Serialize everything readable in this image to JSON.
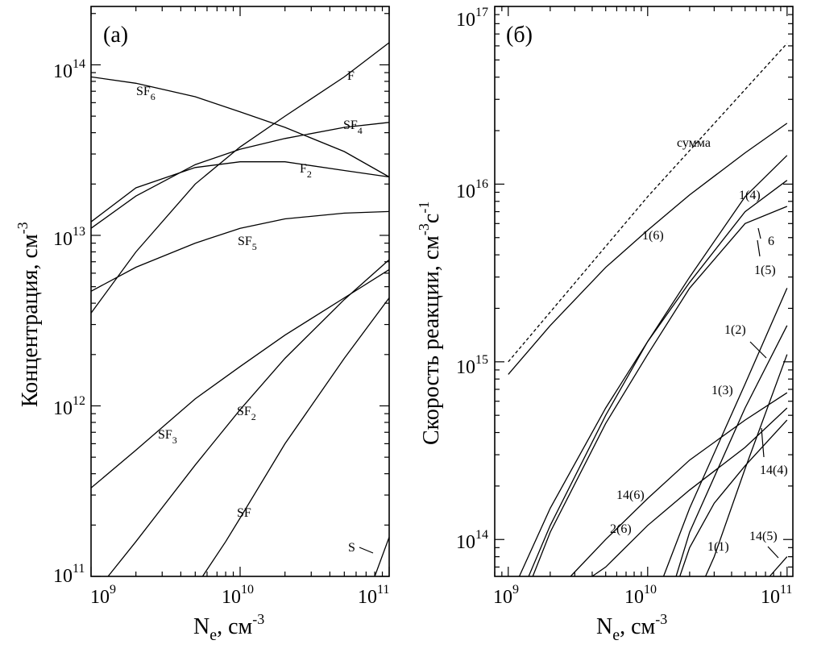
{
  "chart_data": [
    {
      "type": "line",
      "panel_label": "(a)",
      "ylabel": "Концентрация, см",
      "ylabel_sup": "-3",
      "xlabel": "N",
      "xlabel_sub": "e",
      "xlabel_unit": ", см",
      "xlabel_sup": "-3",
      "x_scale": "log",
      "y_scale": "log",
      "xlim": [
        1000000000.0,
        100000000000.0
      ],
      "ylim": [
        100000000000.0,
        220000000000000.0
      ],
      "x_ticks": [
        {
          "base": "10",
          "exp": "9",
          "value": 1000000000.0
        },
        {
          "base": "10",
          "exp": "10",
          "value": 10000000000.0
        },
        {
          "base": "10",
          "exp": "11",
          "value": 100000000000.0
        }
      ],
      "y_ticks": [
        {
          "base": "10",
          "exp": "11",
          "value": 100000000000.0
        },
        {
          "base": "10",
          "exp": "12",
          "value": 1000000000000.0
        },
        {
          "base": "10",
          "exp": "13",
          "value": 10000000000000.0
        },
        {
          "base": "10",
          "exp": "14",
          "value": 100000000000000.0
        }
      ],
      "series": [
        {
          "name": "SF6",
          "label": {
            "base": "SF",
            "sub": "6"
          },
          "x": [
            1000000000.0,
            2000000000.0,
            5000000000.0,
            10000000000.0,
            20000000000.0,
            50000000000.0,
            100000000000.0
          ],
          "values": [
            85000000000000.0,
            78000000000000.0,
            65000000000000.0,
            53000000000000.0,
            43000000000000.0,
            31000000000000.0,
            22000000000000.0
          ]
        },
        {
          "name": "F",
          "label": {
            "base": "F",
            "sub": ""
          },
          "x": [
            1000000000.0,
            2000000000.0,
            5000000000.0,
            10000000000.0,
            20000000000.0,
            50000000000.0,
            100000000000.0
          ],
          "values": [
            3500000000000.0,
            8000000000000.0,
            20000000000000.0,
            33000000000000.0,
            50000000000000.0,
            85000000000000.0,
            135000000000000.0
          ]
        },
        {
          "name": "SF4",
          "label": {
            "base": "SF",
            "sub": "4"
          },
          "x": [
            1000000000.0,
            2000000000.0,
            5000000000.0,
            10000000000.0,
            20000000000.0,
            50000000000.0,
            100000000000.0
          ],
          "values": [
            11000000000000.0,
            17000000000000.0,
            26000000000000.0,
            32000000000000.0,
            37000000000000.0,
            43000000000000.0,
            46000000000000.0
          ]
        },
        {
          "name": "F2",
          "label": {
            "base": "F",
            "sub": "2"
          },
          "x": [
            1000000000.0,
            2000000000.0,
            5000000000.0,
            10000000000.0,
            20000000000.0,
            50000000000.0,
            100000000000.0
          ],
          "values": [
            12000000000000.0,
            19000000000000.0,
            25000000000000.0,
            27000000000000.0,
            27000000000000.0,
            24000000000000.0,
            22000000000000.0
          ]
        },
        {
          "name": "SF5",
          "label": {
            "base": "SF",
            "sub": "5"
          },
          "x": [
            1000000000.0,
            2000000000.0,
            5000000000.0,
            10000000000.0,
            20000000000.0,
            50000000000.0,
            100000000000.0
          ],
          "values": [
            4700000000000.0,
            6500000000000.0,
            9000000000000.0,
            11000000000000.0,
            12500000000000.0,
            13500000000000.0,
            13800000000000.0
          ]
        },
        {
          "name": "SF3",
          "label": {
            "base": "SF",
            "sub": "3"
          },
          "x": [
            1000000000.0,
            2000000000.0,
            5000000000.0,
            10000000000.0,
            20000000000.0,
            50000000000.0,
            100000000000.0
          ],
          "values": [
            330000000000.0,
            550000000000.0,
            1100000000000.0,
            1700000000000.0,
            2600000000000.0,
            4300000000000.0,
            6300000000000.0
          ]
        },
        {
          "name": "SF2",
          "label": {
            "base": "SF",
            "sub": "2"
          },
          "x": [
            1300000000.0,
            2000000000.0,
            5000000000.0,
            10000000000.0,
            20000000000.0,
            50000000000.0,
            100000000000.0
          ],
          "values": [
            100000000000.0,
            160000000000.0,
            450000000000.0,
            950000000000.0,
            1900000000000.0,
            4200000000000.0,
            7200000000000.0
          ]
        },
        {
          "name": "SF",
          "label": {
            "base": "SF",
            "sub": ""
          },
          "x": [
            5600000000.0,
            8000000000.0,
            10000000000.0,
            20000000000.0,
            50000000000.0,
            100000000000.0
          ],
          "values": [
            100000000000.0,
            160000000000.0,
            220000000000.0,
            600000000000.0,
            1900000000000.0,
            4300000000000.0
          ]
        },
        {
          "name": "S",
          "label": {
            "base": "S",
            "sub": ""
          },
          "x": [
            80000000000.0,
            100000000000.0
          ],
          "values": [
            100000000000.0,
            170000000000.0
          ]
        }
      ]
    },
    {
      "type": "line",
      "panel_label": "(б)",
      "ylabel": "Скорость реакции, см",
      "ylabel_sup1": "-3",
      "ylabel_mid": "с",
      "ylabel_sup2": "-1",
      "xlabel": "N",
      "xlabel_sub": "e",
      "xlabel_unit": ", см",
      "xlabel_sup": "-3",
      "x_scale": "log",
      "y_scale": "log",
      "xlim": [
        800000000.0,
        110000000000.0
      ],
      "ylim": [
        62000000000000.0,
        1e+17
      ],
      "x_ticks": [
        {
          "base": "10",
          "exp": "9",
          "value": 1000000000.0
        },
        {
          "base": "10",
          "exp": "10",
          "value": 10000000000.0
        },
        {
          "base": "10",
          "exp": "11",
          "value": 100000000000.0
        }
      ],
      "y_ticks": [
        {
          "base": "10",
          "exp": "14",
          "value": 100000000000000.0
        },
        {
          "base": "10",
          "exp": "15",
          "value": 1000000000000000.0
        },
        {
          "base": "10",
          "exp": "16",
          "value": 1e+16
        },
        {
          "base": "10",
          "exp": "17",
          "value": 1e+17
        }
      ],
      "series": [
        {
          "name": "сумма",
          "label": "сумма",
          "dashed": true,
          "x": [
            1000000000.0,
            10000000000.0,
            100000000000.0
          ],
          "values": [
            1000000000000000.0,
            8500000000000000.0,
            6.2e+16
          ]
        },
        {
          "name": "1(6)",
          "label": "1(6)",
          "x": [
            1000000000.0,
            2000000000.0,
            5000000000.0,
            10000000000.0,
            20000000000.0,
            50000000000.0,
            100000000000.0
          ],
          "values": [
            850000000000000.0,
            1600000000000000.0,
            3400000000000000.0,
            5500000000000000.0,
            8700000000000000.0,
            1.5e+16,
            2.2e+16
          ]
        },
        {
          "name": "1(4)",
          "label": "1(4)",
          "x": [
            1400000000.0,
            2000000000.0,
            5000000000.0,
            10000000000.0,
            20000000000.0,
            50000000000.0,
            100000000000.0
          ],
          "values": [
            62000000000000.0,
            120000000000000.0,
            500000000000000.0,
            1300000000000000.0,
            3000000000000000.0,
            8500000000000000.0,
            1.45e+16
          ]
        },
        {
          "name": "6",
          "label": "6",
          "x": [
            1200000000.0,
            2000000000.0,
            5000000000.0,
            10000000000.0,
            20000000000.0,
            50000000000.0,
            100000000000.0
          ],
          "values": [
            62000000000000.0,
            150000000000000.0,
            550000000000000.0,
            1300000000000000.0,
            2800000000000000.0,
            7000000000000000.0,
            1.05e+16
          ]
        },
        {
          "name": "1(5)",
          "label": "1(5)",
          "x": [
            1500000000.0,
            2000000000.0,
            5000000000.0,
            10000000000.0,
            20000000000.0,
            50000000000.0,
            100000000000.0
          ],
          "values": [
            62000000000000.0,
            110000000000000.0,
            450000000000000.0,
            1100000000000000.0,
            2600000000000000.0,
            6000000000000000.0,
            7500000000000000.0
          ]
        },
        {
          "name": "1(2)",
          "label": "1(2)",
          "x": [
            13000000000.0,
            20000000000.0,
            50000000000.0,
            100000000000.0
          ],
          "values": [
            62000000000000.0,
            150000000000000.0,
            750000000000000.0,
            2600000000000000.0
          ]
        },
        {
          "name": "1(3)",
          "label": "1(3)",
          "x": [
            16000000000.0,
            20000000000.0,
            50000000000.0,
            100000000000.0
          ],
          "values": [
            62000000000000.0,
            110000000000000.0,
            550000000000000.0,
            1600000000000000.0
          ]
        },
        {
          "name": "1(1)",
          "label": "1(1)",
          "x": [
            26000000000.0,
            30000000000.0,
            50000000000.0,
            100000000000.0
          ],
          "values": [
            62000000000000.0,
            80000000000000.0,
            250000000000000.0,
            1100000000000000.0
          ]
        },
        {
          "name": "14(6)",
          "label": "14(6)",
          "x": [
            2800000000.0,
            5000000000.0,
            10000000000.0,
            20000000000.0,
            50000000000.0,
            100000000000.0
          ],
          "values": [
            62000000000000.0,
            100000000000000.0,
            170000000000000.0,
            280000000000000.0,
            470000000000000.0,
            670000000000000.0
          ]
        },
        {
          "name": "14(4)",
          "label": "14(4)",
          "x": [
            17000000000.0,
            20000000000.0,
            30000000000.0,
            50000000000.0,
            100000000000.0
          ],
          "values": [
            62000000000000.0,
            90000000000000.0,
            160000000000000.0,
            260000000000000.0,
            470000000000000.0
          ]
        },
        {
          "name": "2(6)",
          "label": "2(6)",
          "x": [
            4000000000.0,
            5000000000.0,
            10000000000.0,
            20000000000.0,
            50000000000.0,
            100000000000.0
          ],
          "values": [
            62000000000000.0,
            70000000000000.0,
            120000000000000.0,
            190000000000000.0,
            330000000000000.0,
            550000000000000.0
          ]
        },
        {
          "name": "14(5)",
          "label": "14(5)",
          "x": [
            75000000000.0,
            100000000000.0
          ],
          "values": [
            62000000000000.0,
            80000000000000.0
          ]
        }
      ]
    }
  ]
}
